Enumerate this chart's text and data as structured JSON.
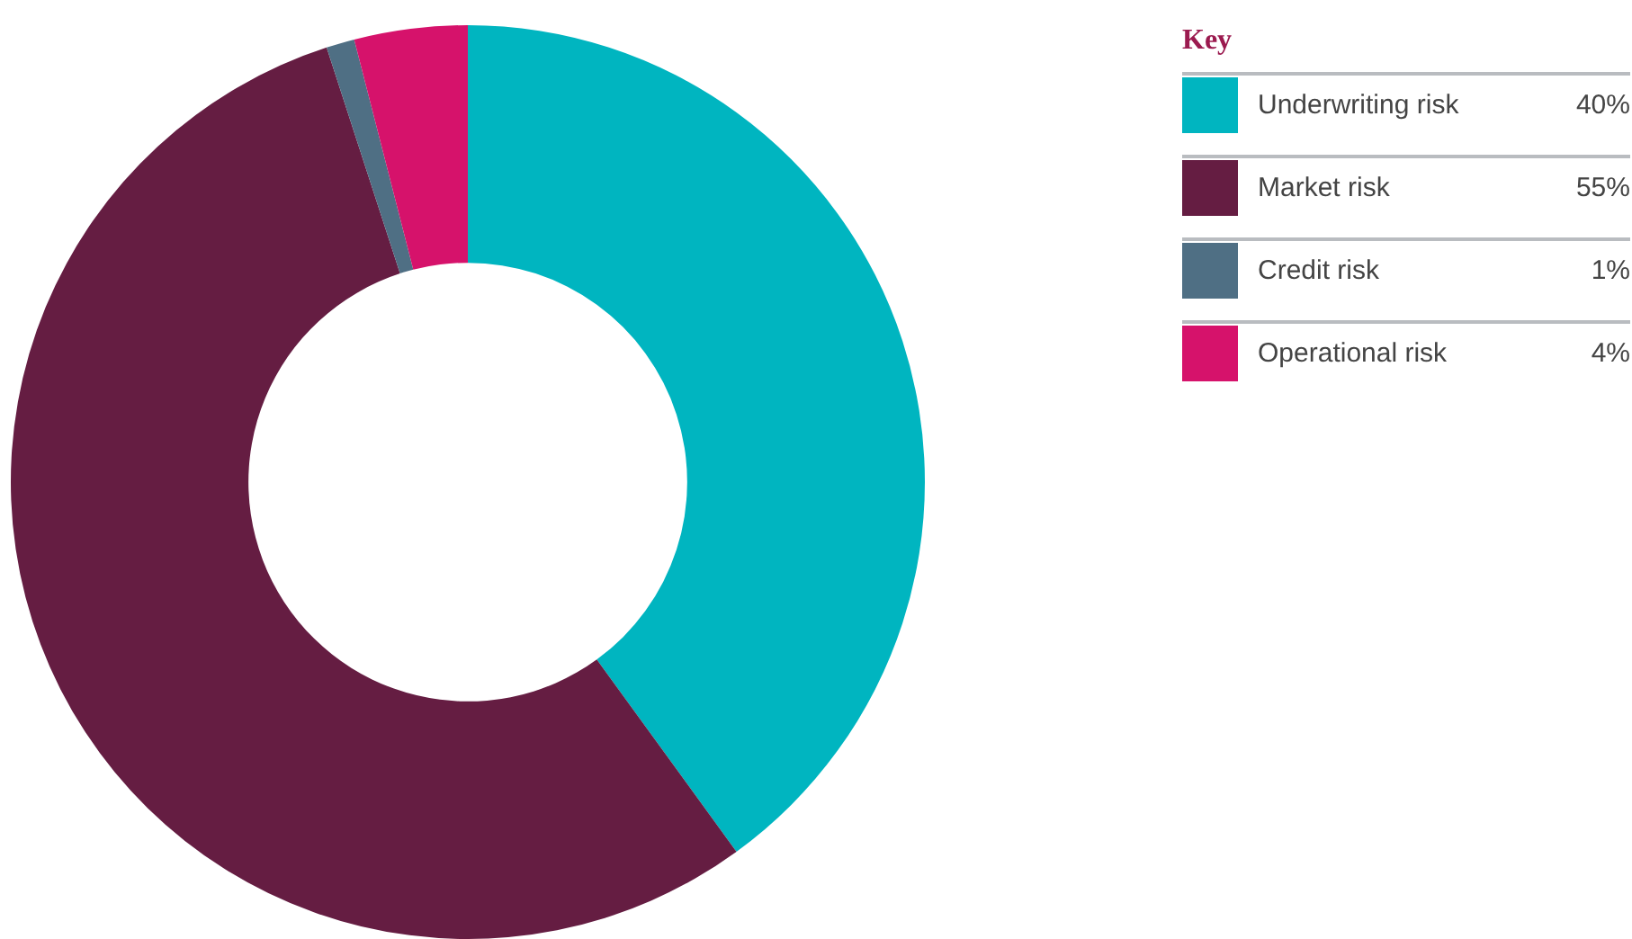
{
  "chart_data": {
    "type": "donut",
    "legend_title": "Key",
    "legend": "right",
    "value_labels": [
      "40%",
      "55%",
      "1%",
      "4%"
    ],
    "categories": [
      "Underwriting risk",
      "Market risk",
      "Credit risk",
      "Operational risk"
    ],
    "values": [
      40,
      55,
      1,
      4
    ],
    "colors": [
      "#00b5c0",
      "#651d42",
      "#4f6f84",
      "#d6126b"
    ]
  }
}
